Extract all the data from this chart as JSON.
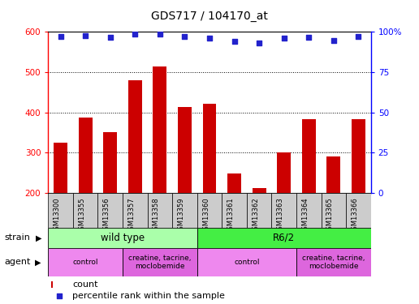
{
  "title": "GDS717 / 104170_at",
  "samples": [
    "GSM13300",
    "GSM13355",
    "GSM13356",
    "GSM13357",
    "GSM13358",
    "GSM13359",
    "GSM13360",
    "GSM13361",
    "GSM13362",
    "GSM13363",
    "GSM13364",
    "GSM13365",
    "GSM13366"
  ],
  "counts": [
    325,
    387,
    352,
    480,
    515,
    413,
    422,
    248,
    212,
    300,
    383,
    291,
    383
  ],
  "percentiles": [
    97,
    97.5,
    96.5,
    98.5,
    98.5,
    97,
    96,
    94,
    93,
    96,
    96.5,
    94.5,
    97
  ],
  "bar_color": "#cc0000",
  "dot_color": "#2222cc",
  "ylim_left": [
    200,
    600
  ],
  "ylim_right": [
    0,
    100
  ],
  "yticks_left": [
    200,
    300,
    400,
    500,
    600
  ],
  "yticks_right": [
    0,
    25,
    50,
    75,
    100
  ],
  "grid_lines": [
    300,
    400,
    500
  ],
  "strain_groups": [
    {
      "label": "wild type",
      "start": 0,
      "end": 6,
      "color": "#aaffaa"
    },
    {
      "label": "R6/2",
      "start": 6,
      "end": 13,
      "color": "#44ee44"
    }
  ],
  "agent_groups": [
    {
      "label": "control",
      "start": 0,
      "end": 3,
      "color": "#ee88ee"
    },
    {
      "label": "creatine, tacrine,\nmoclobemide",
      "start": 3,
      "end": 6,
      "color": "#dd66dd"
    },
    {
      "label": "control",
      "start": 6,
      "end": 10,
      "color": "#ee88ee"
    },
    {
      "label": "creatine, tacrine,\nmoclobemide",
      "start": 10,
      "end": 13,
      "color": "#dd66dd"
    }
  ],
  "legend_count_color": "#cc0000",
  "legend_dot_color": "#2222cc",
  "tick_bg_color": "#cccccc",
  "plot_bg_color": "#ffffff",
  "bar_width": 0.55
}
